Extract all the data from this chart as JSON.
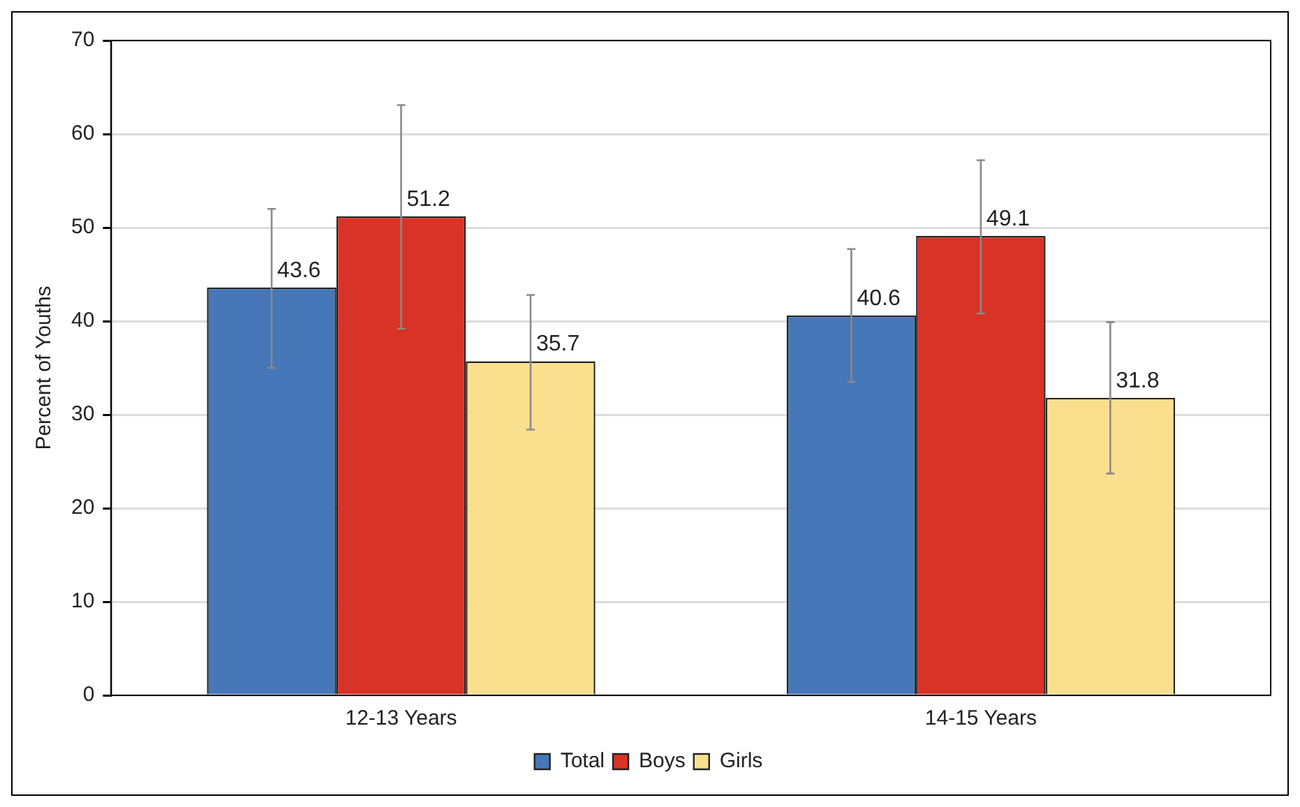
{
  "chart_data": {
    "type": "bar",
    "ylabel": "Percent of Youths",
    "categories": [
      "12-13 Years",
      "14-15 Years"
    ],
    "series": [
      {
        "name": "Total",
        "color": "#4677b8",
        "values": [
          43.6,
          40.6
        ],
        "errors": [
          [
            35.0,
            52.0
          ],
          [
            33.5,
            47.7
          ]
        ]
      },
      {
        "name": "Boys",
        "color": "#d93226",
        "values": [
          51.2,
          49.1
        ],
        "errors": [
          [
            39.2,
            63.1
          ],
          [
            40.8,
            57.2
          ]
        ]
      },
      {
        "name": "Girls",
        "color": "#fadf8f",
        "values": [
          35.7,
          31.8
        ],
        "errors": [
          [
            28.4,
            42.8
          ],
          [
            23.7,
            39.9
          ]
        ]
      }
    ],
    "ylim": [
      0,
      70
    ],
    "yticks": [
      0,
      10,
      20,
      30,
      40,
      50,
      60,
      70
    ],
    "grid": "y",
    "legend": "bottom",
    "data_labels": true
  }
}
